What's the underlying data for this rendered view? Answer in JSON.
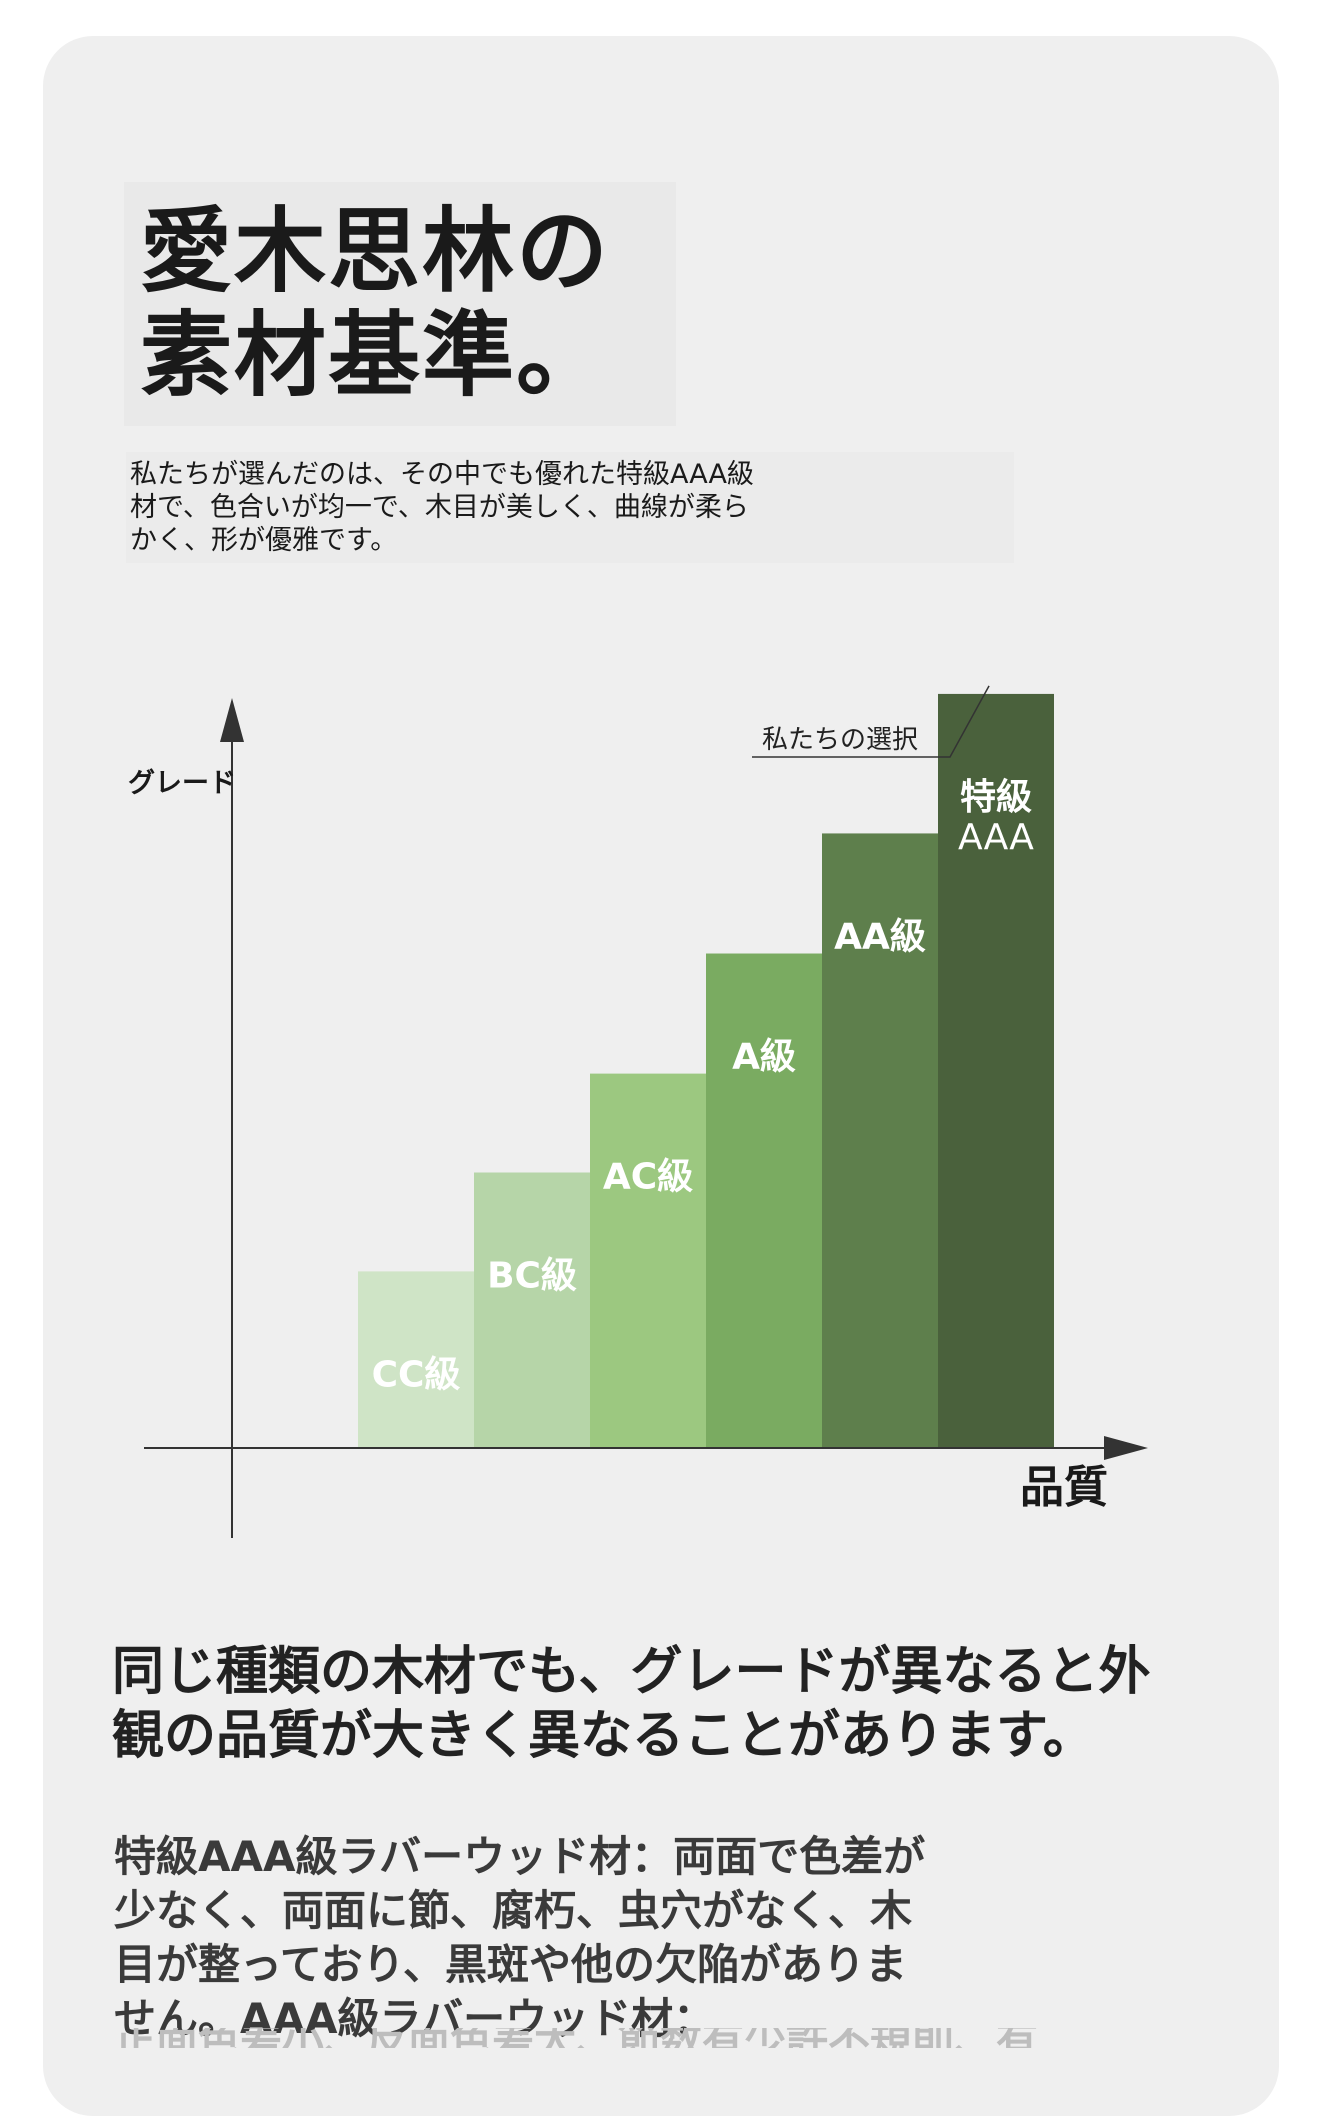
{
  "title": [
    "愛木思林の",
    "素材基準。"
  ],
  "intro": [
    "私たちが選んだのは、その中でも優れた特級AAA級",
    "材で、色合いが均一で、木目が美しく、曲線が柔ら",
    "かく、形が優雅です。"
  ],
  "chart_data": {
    "type": "bar",
    "ylabel": "グレード",
    "xlabel": "品質",
    "categories": [
      "CC級",
      "BC級",
      "AC級",
      "A級",
      "AA級",
      "特級AAA"
    ],
    "category_lines": [
      [
        "CC級"
      ],
      [
        "BC級"
      ],
      [
        "AC級"
      ],
      [
        "A級"
      ],
      [
        "AA級"
      ],
      [
        "特級",
        "AAA"
      ]
    ],
    "values": [
      1,
      1.56,
      2.12,
      2.8,
      3.48,
      4.27
    ],
    "ylim": [
      0,
      5
    ],
    "colors": [
      "#cfe4c6",
      "#b6d5a8",
      "#9cc880",
      "#7aab61",
      "#5e7f4c",
      "#4a613c"
    ],
    "annotation": {
      "text": "私たちの選択",
      "target_index": 5
    },
    "grid": false,
    "legend": "none"
  },
  "headline": [
    "同じ種類の木材でも、グレードが異なると外",
    "観の品質が大きく異なることがあります。"
  ],
  "body": [
    "特級AAA級ラバーウッド材：両面で色差が",
    "少なく、両面に節、腐朽、虫穴がなく、木",
    "目が整っており、黒斑や他の欠陥がありま",
    "せん。AAA級ラバーウッド材："
  ],
  "faded_line": "正面色差小、反面色差大、節数有少許不規則、有黒斑"
}
